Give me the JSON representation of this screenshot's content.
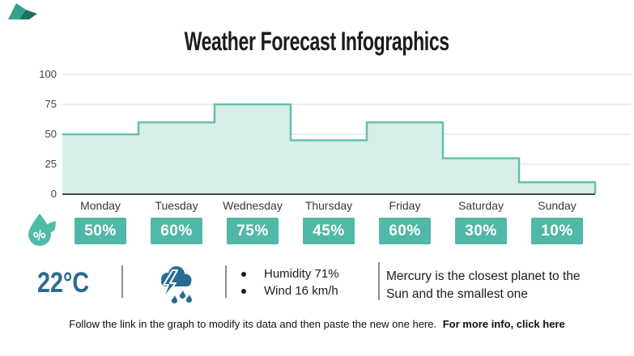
{
  "title": "Weather Forecast Infographics",
  "colors": {
    "badge_teal": "#50b8a6",
    "area_fill": "#d8eee9",
    "area_stroke": "#67bfae",
    "steel_blue": "#2a6b92",
    "grid_grey": "#e2e2e2",
    "axis_dark": "#474747"
  },
  "chart_data": {
    "type": "area",
    "step": true,
    "title": "Weather Forecast Infographics",
    "categories": [
      "Monday",
      "Tuesday",
      "Wednesday",
      "Thursday",
      "Friday",
      "Saturday",
      "Sunday"
    ],
    "values": [
      50,
      60,
      75,
      45,
      60,
      30,
      10
    ],
    "value_labels": [
      "50%",
      "60%",
      "75%",
      "45%",
      "60%",
      "30%",
      "10%"
    ],
    "xlabel": "",
    "ylabel": "",
    "ylim": [
      0,
      100
    ],
    "yticks": [
      0,
      25,
      50,
      75,
      100
    ],
    "grid": true,
    "legend": false,
    "fill_color": "#d8eee9",
    "line_color": "#67bfae"
  },
  "icons": {
    "humidity": "water-drop-percent-icon",
    "weather": "storm-cloud-rain-icon"
  },
  "info": {
    "temperature": "22°C",
    "bullets": [
      "Humidity 71%",
      "Wind 16 km/h"
    ],
    "fact": "Mercury is the closest planet to the Sun and the smallest one"
  },
  "footer": {
    "text": "Follow the link in the graph to modify its data and then paste the new one here.",
    "link_label": "For more info, click here"
  }
}
